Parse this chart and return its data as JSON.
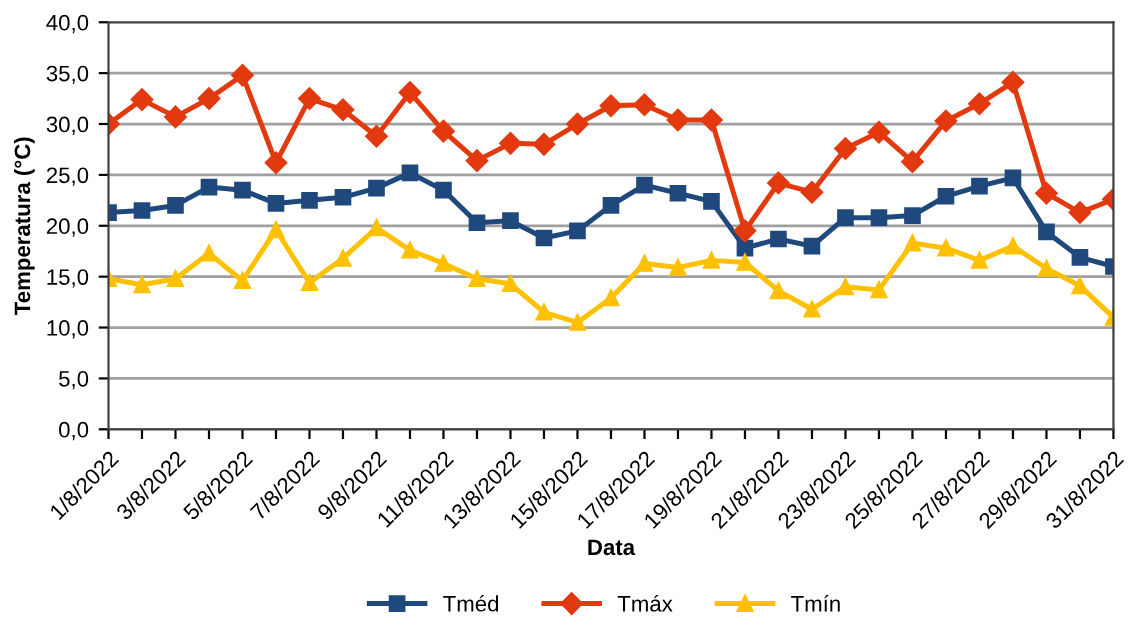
{
  "chart_data": {
    "type": "line",
    "xlabel": "Data",
    "ylabel": "Temperatura (°C)",
    "categories": [
      "1/8/2022",
      null,
      "3/8/2022",
      null,
      "5/8/2022",
      null,
      "7/8/2022",
      null,
      "9/8/2022",
      null,
      "11/8/2022",
      null,
      "13/8/2022",
      null,
      "15/8/2022",
      null,
      "17/8/2022",
      null,
      "19/8/2022",
      null,
      "21/8/2022",
      null,
      "23/8/2022",
      null,
      "25/8/2022",
      null,
      "27/8/2022",
      null,
      "29/8/2022",
      null,
      "31/8/2022"
    ],
    "series": [
      {
        "name": "Tméd",
        "color": "#1f497d",
        "marker": "square",
        "values": [
          21.3,
          21.5,
          22.0,
          23.8,
          23.5,
          22.2,
          22.5,
          22.8,
          23.7,
          25.2,
          23.5,
          20.3,
          20.5,
          18.8,
          19.5,
          22.0,
          24.0,
          23.2,
          22.4,
          17.8,
          18.7,
          18.0,
          20.8,
          20.8,
          21.0,
          22.9,
          23.9,
          24.7,
          19.4,
          16.9,
          16.0
        ]
      },
      {
        "name": "Tmáx",
        "color": "#e2390e",
        "marker": "diamond",
        "values": [
          30.0,
          32.4,
          30.7,
          32.5,
          34.8,
          26.2,
          32.5,
          31.4,
          28.8,
          33.1,
          29.3,
          26.4,
          28.1,
          28.0,
          30.0,
          31.8,
          31.9,
          30.4,
          30.4,
          19.5,
          24.2,
          23.3,
          27.6,
          29.2,
          26.3,
          30.3,
          32.0,
          34.1,
          23.2,
          21.3,
          22.6
        ]
      },
      {
        "name": "Tmín",
        "color": "#ffc000",
        "marker": "triangle",
        "values": [
          14.8,
          14.2,
          14.8,
          17.3,
          14.6,
          19.6,
          14.4,
          16.8,
          19.8,
          17.6,
          16.3,
          14.8,
          14.3,
          11.5,
          10.5,
          12.9,
          16.3,
          15.9,
          16.6,
          16.4,
          13.6,
          11.8,
          14.0,
          13.7,
          18.3,
          17.8,
          16.6,
          18.0,
          15.8,
          14.1,
          11.0
        ]
      }
    ],
    "ylim": [
      0,
      40
    ],
    "yticks": [
      {
        "value": 0,
        "label": "0,0"
      },
      {
        "value": 5,
        "label": "5,0"
      },
      {
        "value": 10,
        "label": "10,0"
      },
      {
        "value": 15,
        "label": "15,0"
      },
      {
        "value": 20,
        "label": "20,0"
      },
      {
        "value": 25,
        "label": "25,0"
      },
      {
        "value": 30,
        "label": "30,0"
      },
      {
        "value": 35,
        "label": "35,0"
      },
      {
        "value": 40,
        "label": "40,0"
      }
    ],
    "grid": "y",
    "legend": "bottom",
    "line_style": "solid"
  }
}
